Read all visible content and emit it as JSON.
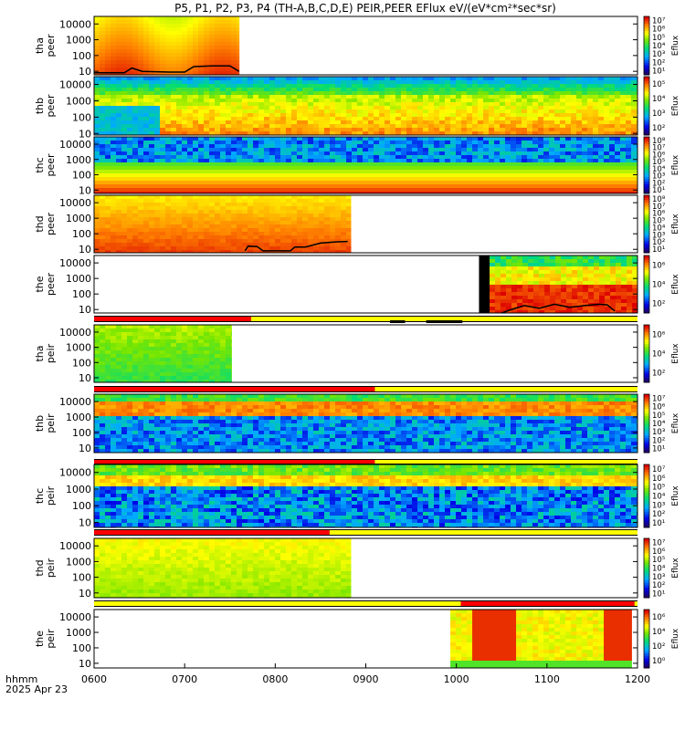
{
  "title": "P5, P1, P2, P3, P4 (TH-A,B,C,D,E) PEIR,PEER EFlux eV/(eV*cm²*sec*sr)",
  "footer": {
    "label": "hhmm",
    "date": "2025 Apr 23"
  },
  "colors": {
    "frame": "#000000",
    "bar_red": "#ff0000",
    "bar_yellow": "#ffff00",
    "bar_black": "#000000",
    "trace": "#000000"
  },
  "chart_data": [
    {
      "type": "heatmap",
      "name_lines": [
        "tha",
        "peer"
      ],
      "ylim": [
        6,
        30000
      ],
      "log_y": true,
      "y_ticks": [
        "10",
        "100",
        "1000",
        "10000"
      ],
      "data_end": "0736",
      "cb_ticks": [
        "10¹",
        "10²",
        "10³",
        "10⁴",
        "10⁵",
        "10⁶",
        "10⁷"
      ],
      "cb_label": "Eflux",
      "trace": [
        [
          "0600",
          8
        ],
        [
          "0620",
          8
        ],
        [
          "0625",
          16
        ],
        [
          "0632",
          10
        ],
        [
          "0650",
          9
        ],
        [
          "0700",
          9
        ],
        [
          "0706",
          20
        ],
        [
          "0718",
          22
        ],
        [
          "0730",
          22
        ],
        [
          "0736",
          10
        ]
      ]
    },
    {
      "type": "heatmap",
      "name_lines": [
        "thb",
        "peer"
      ],
      "ylim": [
        8,
        30000
      ],
      "log_y": true,
      "y_ticks": [
        "10",
        "100",
        "1000",
        "10000"
      ],
      "data_end": "1200",
      "cb_ticks": [
        "10²",
        "10³",
        "10⁴",
        "10⁵"
      ],
      "cb_label": "Eflux"
    },
    {
      "type": "heatmap",
      "name_lines": [
        "thc",
        "peer"
      ],
      "ylim": [
        6,
        30000
      ],
      "log_y": true,
      "y_ticks": [
        "10",
        "100",
        "1000",
        "10000"
      ],
      "data_end": "1200",
      "cb_ticks": [
        "10¹",
        "10²",
        "10³",
        "10⁴",
        "10⁵",
        "10⁶",
        "10⁷",
        "10⁸"
      ],
      "cb_label": "Eflux"
    },
    {
      "type": "heatmap",
      "name_lines": [
        "thd",
        "peer"
      ],
      "ylim": [
        6,
        30000
      ],
      "log_y": true,
      "y_ticks": [
        "10",
        "100",
        "1000",
        "10000"
      ],
      "data_end": "0850",
      "cb_ticks": [
        "10¹",
        "10²",
        "10³",
        "10⁴",
        "10⁵",
        "10⁶",
        "10⁷",
        "10⁸"
      ],
      "cb_label": "Eflux",
      "trace": [
        [
          "0740",
          8
        ],
        [
          "0742",
          16
        ],
        [
          "0748",
          15
        ],
        [
          "0752",
          8
        ],
        [
          "0810",
          8
        ],
        [
          "0813",
          14
        ],
        [
          "0820",
          14
        ],
        [
          "0830",
          25
        ],
        [
          "0840",
          30
        ],
        [
          "0848",
          32
        ]
      ]
    },
    {
      "type": "heatmap",
      "name_lines": [
        "the",
        "peer"
      ],
      "ylim": [
        6,
        30000
      ],
      "log_y": true,
      "y_ticks": [
        "10",
        "100",
        "1000",
        "10000"
      ],
      "data_start": "1022",
      "data_end": "1200",
      "cb_ticks": [
        "10²",
        "10⁴",
        "10⁶"
      ],
      "cb_label": "Eflux",
      "trace": [
        [
          "1030",
          6
        ],
        [
          "1035",
          9
        ],
        [
          "1045",
          18
        ],
        [
          "1055",
          12
        ],
        [
          "1105",
          22
        ],
        [
          "1115",
          14
        ],
        [
          "1125",
          18
        ],
        [
          "1135",
          22
        ],
        [
          "1140",
          20
        ],
        [
          "1145",
          8
        ]
      ]
    },
    {
      "type": "heatmap",
      "name_lines": [
        "tha",
        "peir"
      ],
      "ylim": [
        5,
        30000
      ],
      "log_y": true,
      "y_ticks": [
        "10",
        "100",
        "1000",
        "10000"
      ],
      "data_end": "0731",
      "cb_ticks": [
        "10²",
        "10⁴",
        "10⁶"
      ],
      "cb_label": "Eflux",
      "mode_bar": [
        [
          "0600",
          "0744",
          "red"
        ],
        [
          "0744",
          "1200",
          "yellow"
        ]
      ],
      "black_marks": [
        [
          "0916",
          "0926"
        ],
        [
          "0940",
          "1004"
        ]
      ]
    },
    {
      "type": "heatmap",
      "name_lines": [
        "thb",
        "peir"
      ],
      "ylim": [
        5,
        30000
      ],
      "log_y": true,
      "y_ticks": [
        "10",
        "100",
        "1000",
        "10000"
      ],
      "data_end": "1200",
      "cb_ticks": [
        "10¹",
        "10²",
        "10³",
        "10⁴",
        "10⁵",
        "10⁶",
        "10⁷"
      ],
      "cb_label": "Eflux",
      "mode_bar": [
        [
          "0600",
          "0906",
          "red"
        ],
        [
          "0906",
          "1200",
          "yellow"
        ]
      ]
    },
    {
      "type": "heatmap",
      "name_lines": [
        "thc",
        "peir"
      ],
      "ylim": [
        5,
        30000
      ],
      "log_y": true,
      "y_ticks": [
        "10",
        "100",
        "1000",
        "10000"
      ],
      "data_end": "1200",
      "cb_ticks": [
        "10¹",
        "10²",
        "10³",
        "10⁴",
        "10⁵",
        "10⁶",
        "10⁷"
      ],
      "cb_label": "Eflux",
      "mode_bar": [
        [
          "0600",
          "0906",
          "red"
        ],
        [
          "0906",
          "1200",
          "yellow"
        ]
      ]
    },
    {
      "type": "heatmap",
      "name_lines": [
        "thd",
        "peir"
      ],
      "ylim": [
        5,
        30000
      ],
      "log_y": true,
      "y_ticks": [
        "10",
        "100",
        "1000",
        "10000"
      ],
      "data_end": "0850",
      "cb_ticks": [
        "10¹",
        "10²",
        "10³",
        "10⁴",
        "10⁵",
        "10⁶",
        "10⁷"
      ],
      "cb_label": "Eflux",
      "mode_bar": [
        [
          "0600",
          "0836",
          "red"
        ],
        [
          "0836",
          "1200",
          "yellow"
        ]
      ]
    },
    {
      "type": "heatmap",
      "name_lines": [
        "the",
        "peir"
      ],
      "ylim": [
        5,
        30000
      ],
      "log_y": true,
      "y_ticks": [
        "10",
        "100",
        "1000",
        "10000"
      ],
      "data_start": "0956",
      "data_end": "1156",
      "cb_ticks": [
        "10⁰",
        "10²",
        "10⁴",
        "10⁶"
      ],
      "cb_label": "Eflux",
      "mode_bar": [
        [
          "0600",
          "1003",
          "yellow"
        ],
        [
          "1003",
          "1158",
          "red"
        ],
        [
          "1158",
          "1200",
          "yellow"
        ]
      ]
    }
  ],
  "x_axis": {
    "ticks": [
      "0600",
      "0700",
      "0800",
      "0900",
      "1000",
      "1100",
      "1200"
    ]
  }
}
